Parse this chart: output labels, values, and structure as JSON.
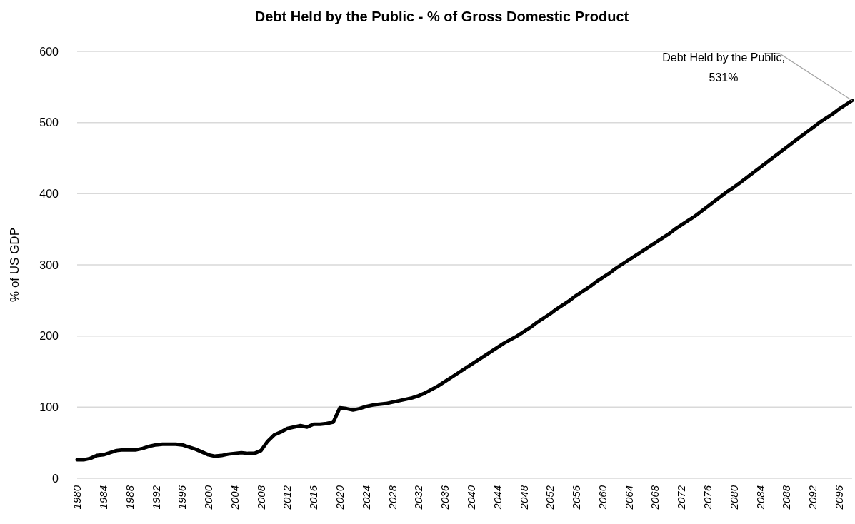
{
  "chart_data": {
    "type": "line",
    "title": "Debt Held by the Public - % of Gross Domestic Product",
    "ylabel": "% of US GDP",
    "x": [
      1980,
      1981,
      1982,
      1983,
      1984,
      1985,
      1986,
      1987,
      1988,
      1989,
      1990,
      1991,
      1992,
      1993,
      1994,
      1995,
      1996,
      1997,
      1998,
      1999,
      2000,
      2001,
      2002,
      2003,
      2004,
      2005,
      2006,
      2007,
      2008,
      2009,
      2010,
      2011,
      2012,
      2013,
      2014,
      2015,
      2016,
      2017,
      2018,
      2019,
      2020,
      2021,
      2022,
      2023,
      2024,
      2025,
      2026,
      2027,
      2028,
      2029,
      2030,
      2031,
      2032,
      2033,
      2034,
      2035,
      2036,
      2037,
      2038,
      2039,
      2040,
      2041,
      2042,
      2043,
      2044,
      2045,
      2046,
      2047,
      2048,
      2049,
      2050,
      2051,
      2052,
      2053,
      2054,
      2055,
      2056,
      2057,
      2058,
      2059,
      2060,
      2061,
      2062,
      2063,
      2064,
      2065,
      2066,
      2067,
      2068,
      2069,
      2070,
      2071,
      2072,
      2073,
      2074,
      2075,
      2076,
      2077,
      2078,
      2079,
      2080,
      2081,
      2082,
      2083,
      2084,
      2085,
      2086,
      2087,
      2088,
      2089,
      2090,
      2091,
      2092,
      2093,
      2094,
      2095,
      2096,
      2097,
      2098
    ],
    "series": [
      {
        "color": "#000000",
        "values": [
          26,
          26,
          28,
          32,
          33,
          36,
          39,
          40,
          40,
          40,
          42,
          45,
          47,
          48,
          48,
          48,
          47,
          44,
          41,
          37,
          33,
          31,
          32,
          34,
          35,
          36,
          35,
          35,
          39,
          52,
          61,
          65,
          70,
          72,
          74,
          72,
          76,
          76,
          77,
          79,
          99,
          98,
          96,
          98,
          101,
          103,
          104,
          105,
          107,
          109,
          111,
          113,
          116,
          120,
          125,
          130,
          136,
          142,
          148,
          154,
          160,
          166,
          172,
          178,
          184,
          190,
          195,
          200,
          206,
          212,
          219,
          225,
          231,
          238,
          244,
          250,
          257,
          263,
          269,
          276,
          282,
          288,
          295,
          301,
          307,
          313,
          319,
          325,
          331,
          337,
          343,
          350,
          356,
          362,
          368,
          375,
          382,
          389,
          396,
          403,
          409,
          416,
          423,
          430,
          437,
          444,
          451,
          458,
          465,
          472,
          479,
          486,
          493,
          500,
          506,
          512,
          519,
          525,
          531
        ]
      }
    ],
    "xlim": [
      1980,
      2098
    ],
    "xticks": [
      1980,
      1984,
      1988,
      1992,
      1996,
      2000,
      2004,
      2008,
      2012,
      2016,
      2020,
      2024,
      2028,
      2032,
      2036,
      2040,
      2044,
      2048,
      2052,
      2056,
      2060,
      2064,
      2068,
      2072,
      2076,
      2080,
      2084,
      2088,
      2092,
      2096
    ],
    "ylim": [
      0,
      600
    ],
    "yticks": [
      0,
      100,
      200,
      300,
      400,
      500,
      600
    ],
    "grid": "y",
    "marker": "none",
    "line_style": "solid",
    "annotations": [
      {
        "text": "Debt Held by the Public,\n531%",
        "x": 2098,
        "y": 531
      }
    ]
  }
}
